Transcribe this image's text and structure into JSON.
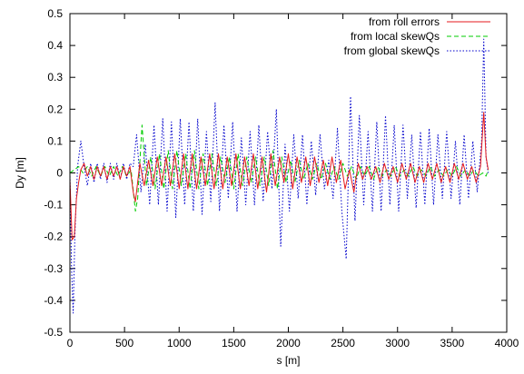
{
  "chart_data": {
    "type": "line",
    "xlabel": "s [m]",
    "ylabel": "Dy [m]",
    "xlim": [
      0,
      4000
    ],
    "ylim": [
      -0.5,
      0.5
    ],
    "xticks": [
      0,
      500,
      1000,
      1500,
      2000,
      2500,
      3000,
      3500,
      4000
    ],
    "yticks": [
      -0.5,
      -0.4,
      -0.3,
      -0.2,
      -0.1,
      0,
      0.1,
      0.2,
      0.3,
      0.4,
      0.5
    ],
    "xtick_labels": [
      "0",
      "500",
      "1000",
      "1500",
      "2000",
      "2500",
      "3000",
      "3500",
      "4000"
    ],
    "ytick_labels": [
      "-0.5",
      "-0.4",
      "-0.3",
      "-0.2",
      "-0.1",
      "0",
      "0.1",
      "0.2",
      "0.3",
      "0.4",
      "0.5"
    ],
    "legend_position": "top-right",
    "series": [
      {
        "name": "from roll errors",
        "color": "#e41a1c",
        "dash": "solid",
        "x": [
          0,
          20,
          40,
          60,
          80,
          100,
          130,
          160,
          190,
          220,
          250,
          280,
          310,
          340,
          370,
          400,
          430,
          460,
          490,
          520,
          550,
          580,
          600,
          640,
          680,
          720,
          760,
          800,
          840,
          880,
          920,
          960,
          1000,
          1040,
          1080,
          1120,
          1160,
          1200,
          1240,
          1280,
          1320,
          1360,
          1400,
          1440,
          1480,
          1520,
          1560,
          1600,
          1640,
          1680,
          1720,
          1760,
          1800,
          1840,
          1880,
          1920,
          1960,
          2000,
          2040,
          2080,
          2120,
          2160,
          2200,
          2240,
          2280,
          2320,
          2360,
          2400,
          2440,
          2480,
          2520,
          2560,
          2600,
          2640,
          2680,
          2720,
          2760,
          2800,
          2840,
          2880,
          2920,
          2960,
          3000,
          3040,
          3080,
          3120,
          3160,
          3200,
          3240,
          3280,
          3320,
          3360,
          3400,
          3440,
          3480,
          3520,
          3560,
          3600,
          3640,
          3680,
          3720,
          3760,
          3790,
          3810,
          3830
        ],
        "y": [
          -0.02,
          -0.21,
          -0.2,
          -0.08,
          -0.03,
          0.01,
          0.03,
          -0.01,
          0.02,
          -0.02,
          0.02,
          -0.01,
          0.02,
          -0.02,
          0.02,
          -0.01,
          0.02,
          -0.02,
          0.02,
          -0.01,
          0.02,
          -0.06,
          -0.09,
          0.03,
          -0.04,
          0.04,
          -0.04,
          0.05,
          -0.04,
          0.05,
          -0.04,
          0.06,
          -0.05,
          0.06,
          -0.05,
          0.06,
          -0.05,
          0.05,
          -0.04,
          0.06,
          -0.05,
          0.06,
          -0.05,
          0.05,
          -0.04,
          0.06,
          -0.05,
          0.05,
          -0.04,
          0.06,
          -0.05,
          0.05,
          -0.06,
          0.06,
          -0.04,
          0.05,
          -0.03,
          0.06,
          -0.05,
          0.05,
          -0.03,
          0.05,
          -0.04,
          0.05,
          -0.03,
          0.04,
          -0.04,
          0.05,
          -0.03,
          0.04,
          -0.05,
          0.01,
          -0.06,
          0.03,
          -0.02,
          0.02,
          -0.02,
          0.02,
          -0.03,
          0.03,
          -0.02,
          0.02,
          -0.03,
          0.03,
          -0.02,
          0.03,
          -0.03,
          0.02,
          -0.03,
          0.03,
          -0.02,
          0.03,
          -0.03,
          0.02,
          -0.03,
          0.03,
          -0.02,
          0.03,
          -0.02,
          0.02,
          -0.03,
          0.02,
          0.19,
          0.05,
          0.01
        ]
      },
      {
        "name": "from local skewQs",
        "color": "#00cc00",
        "dash": "5,3",
        "x": [
          0,
          40,
          80,
          120,
          160,
          200,
          240,
          280,
          320,
          360,
          400,
          440,
          480,
          520,
          560,
          600,
          620,
          660,
          700,
          740,
          780,
          820,
          860,
          900,
          940,
          980,
          1020,
          1060,
          1100,
          1140,
          1180,
          1220,
          1260,
          1300,
          1340,
          1380,
          1420,
          1460,
          1500,
          1540,
          1580,
          1620,
          1660,
          1700,
          1740,
          1780,
          1820,
          1860,
          1900,
          1940,
          1980,
          2020,
          2060,
          2100,
          2140,
          2180,
          2220,
          2260,
          2300,
          2340,
          2380,
          2420,
          2460,
          2500,
          2540,
          2580,
          2620,
          2660,
          2700,
          2740,
          2780,
          2820,
          2860,
          2900,
          2940,
          2980,
          3020,
          3060,
          3100,
          3140,
          3180,
          3220,
          3260,
          3300,
          3340,
          3380,
          3420,
          3460,
          3500,
          3540,
          3580,
          3620,
          3660,
          3700,
          3740,
          3780,
          3810,
          3830
        ],
        "y": [
          0.0,
          0.01,
          0.02,
          0.0,
          0.02,
          -0.01,
          0.02,
          -0.01,
          0.02,
          -0.01,
          0.02,
          -0.01,
          0.02,
          -0.01,
          0.01,
          -0.12,
          -0.08,
          0.15,
          -0.04,
          0.05,
          -0.05,
          0.06,
          -0.05,
          0.07,
          -0.05,
          0.07,
          -0.04,
          0.06,
          -0.05,
          0.07,
          -0.05,
          0.06,
          -0.04,
          0.06,
          -0.04,
          0.05,
          -0.03,
          0.05,
          -0.05,
          0.06,
          -0.04,
          0.05,
          -0.03,
          0.05,
          -0.04,
          0.05,
          -0.04,
          0.07,
          -0.05,
          0.05,
          -0.03,
          0.04,
          -0.03,
          0.04,
          -0.02,
          0.03,
          -0.02,
          0.03,
          -0.02,
          0.03,
          -0.02,
          0.02,
          -0.02,
          0.03,
          -0.01,
          0.02,
          -0.02,
          0.02,
          -0.01,
          0.02,
          -0.02,
          0.02,
          -0.01,
          0.01,
          -0.01,
          0.02,
          -0.01,
          0.01,
          -0.01,
          0.02,
          -0.01,
          0.01,
          -0.01,
          0.02,
          -0.01,
          0.01,
          -0.01,
          0.01,
          -0.01,
          0.02,
          -0.01,
          0.01,
          -0.01,
          0.01,
          -0.01,
          0.0,
          -0.01,
          0.01
        ]
      },
      {
        "name": "from global skewQs",
        "color": "#0000cc",
        "dash": "1.5,2",
        "x": [
          0,
          15,
          30,
          45,
          70,
          100,
          130,
          160,
          190,
          220,
          250,
          280,
          310,
          340,
          370,
          400,
          430,
          460,
          490,
          520,
          550,
          580,
          610,
          650,
          690,
          730,
          770,
          810,
          850,
          890,
          930,
          970,
          1010,
          1050,
          1090,
          1130,
          1170,
          1210,
          1250,
          1290,
          1330,
          1370,
          1410,
          1450,
          1490,
          1530,
          1570,
          1610,
          1650,
          1690,
          1730,
          1770,
          1810,
          1850,
          1890,
          1930,
          1970,
          2010,
          2050,
          2090,
          2130,
          2170,
          2210,
          2250,
          2290,
          2330,
          2370,
          2410,
          2450,
          2490,
          2530,
          2570,
          2610,
          2650,
          2690,
          2730,
          2770,
          2810,
          2850,
          2890,
          2930,
          2970,
          3010,
          3050,
          3090,
          3130,
          3170,
          3210,
          3250,
          3290,
          3330,
          3370,
          3410,
          3450,
          3490,
          3530,
          3570,
          3610,
          3650,
          3690,
          3730,
          3770,
          3790,
          3810,
          3830
        ],
        "y": [
          0.0,
          -0.3,
          -0.44,
          -0.2,
          0.02,
          0.1,
          0.02,
          -0.04,
          0.03,
          -0.03,
          0.03,
          -0.02,
          0.03,
          -0.03,
          0.03,
          -0.02,
          0.03,
          -0.02,
          0.03,
          -0.02,
          0.03,
          0.02,
          0.12,
          -0.06,
          0.09,
          -0.1,
          0.15,
          -0.1,
          0.17,
          -0.12,
          0.16,
          -0.14,
          0.17,
          -0.1,
          0.16,
          -0.12,
          0.17,
          -0.13,
          0.13,
          -0.09,
          0.22,
          -0.12,
          0.15,
          -0.08,
          0.16,
          -0.12,
          0.11,
          -0.1,
          0.13,
          -0.1,
          0.15,
          -0.09,
          0.13,
          -0.05,
          0.2,
          -0.23,
          0.09,
          -0.12,
          0.12,
          -0.08,
          0.12,
          -0.1,
          0.1,
          -0.07,
          0.12,
          -0.05,
          0.04,
          -0.08,
          0.14,
          -0.12,
          -0.27,
          0.24,
          -0.15,
          0.18,
          -0.1,
          0.13,
          -0.12,
          0.16,
          -0.12,
          0.18,
          -0.1,
          0.15,
          -0.12,
          0.15,
          -0.08,
          0.12,
          -0.11,
          0.13,
          -0.1,
          0.14,
          -0.1,
          0.12,
          -0.08,
          0.13,
          -0.08,
          0.1,
          -0.1,
          0.12,
          -0.08,
          0.1,
          -0.06,
          0.1,
          0.42,
          0.05,
          0.0
        ]
      }
    ]
  }
}
